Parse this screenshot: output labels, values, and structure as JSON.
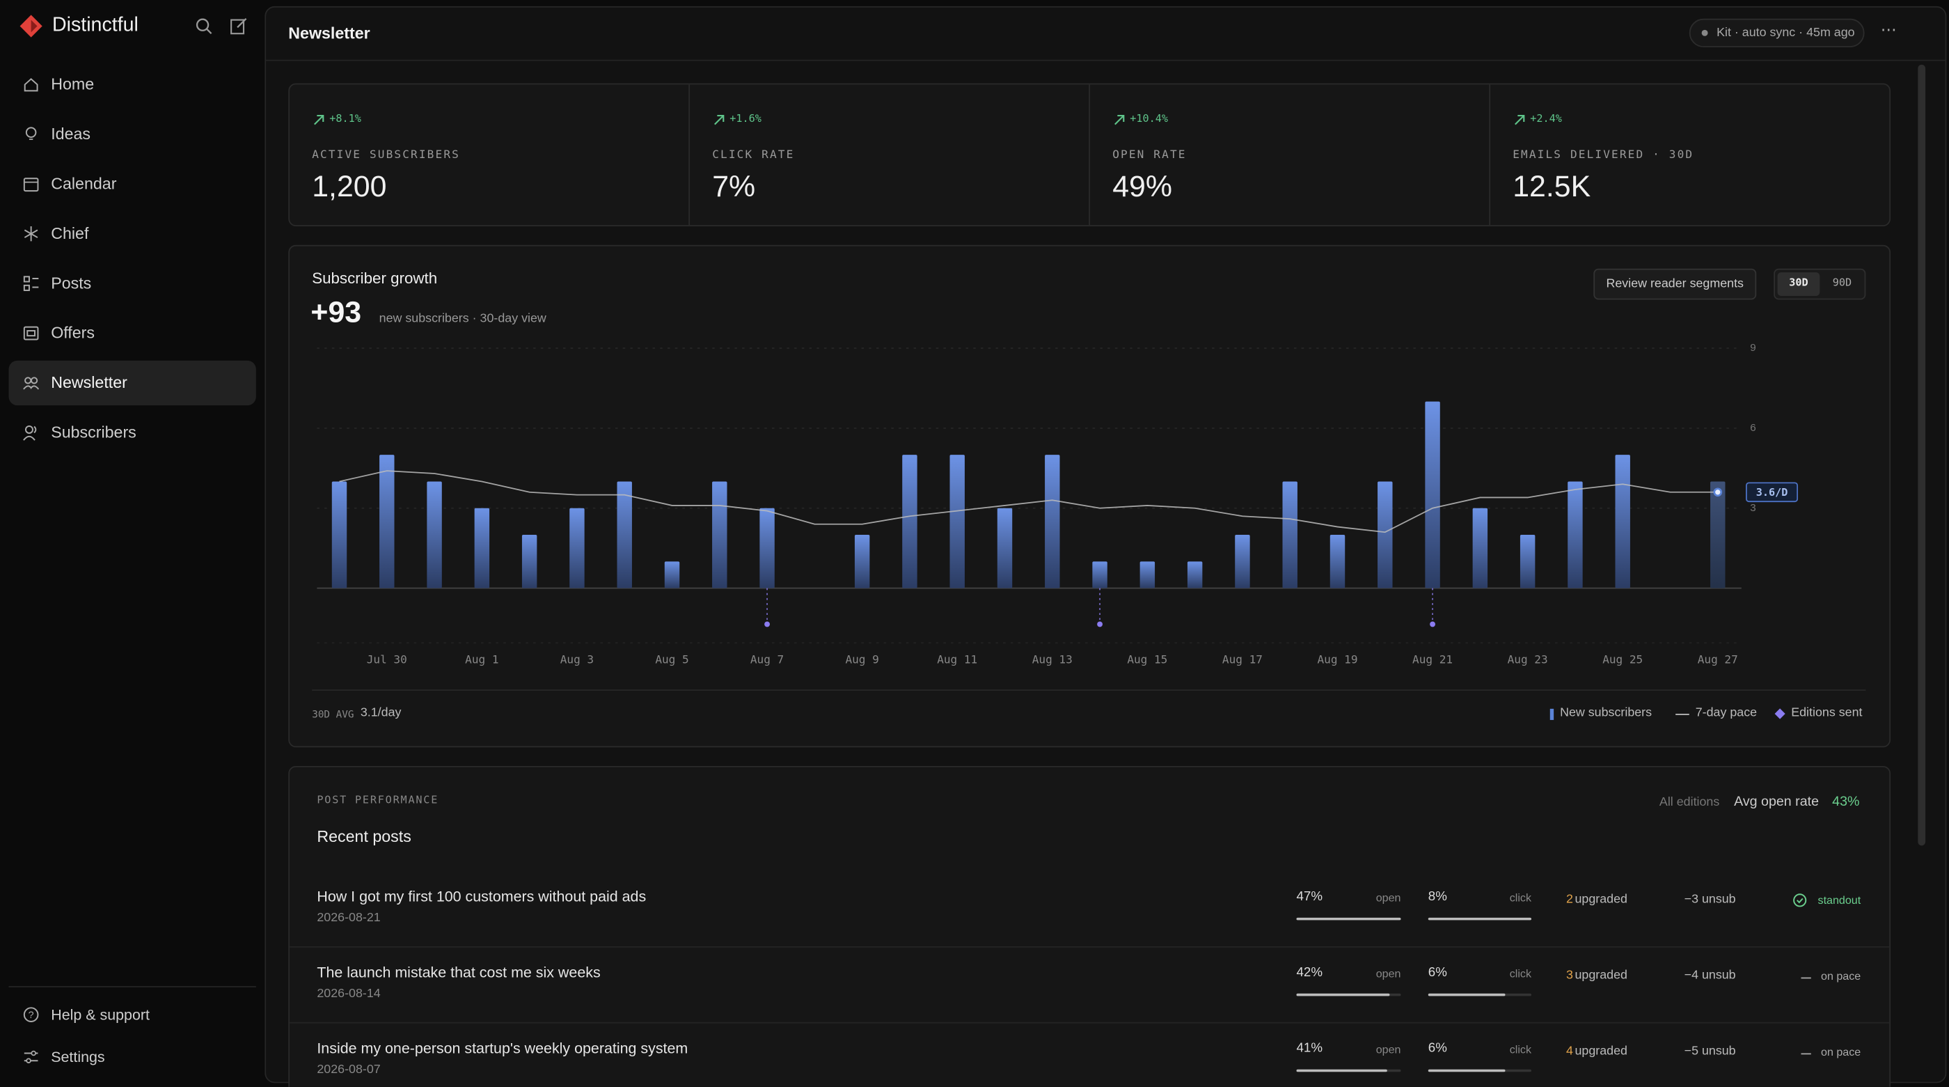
{
  "sidebar": {
    "brand": "Distinctful",
    "nav": [
      "Home",
      "Ideas",
      "Calendar",
      "Chief",
      "Posts",
      "Offers",
      "Newsletter",
      "Subscribers"
    ],
    "footer": [
      "Help & support",
      "Settings"
    ]
  },
  "header": {
    "title": "Newsletter",
    "sync": "Kit · auto sync · 45m ago"
  },
  "kpis": [
    {
      "delta": "+8.1%",
      "label": "ACTIVE SUBSCRIBERS",
      "value": "1,200"
    },
    {
      "delta": "+1.6%",
      "label": "CLICK RATE",
      "value": "7%"
    },
    {
      "delta": "+10.4%",
      "label": "OPEN RATE",
      "value": "49%"
    },
    {
      "delta": "+2.4%",
      "label": "EMAILS DELIVERED · 30D",
      "value": "12.5K"
    }
  ],
  "growth": {
    "title": "Subscriber growth",
    "total": "+93",
    "note": "new subscribers · 30-day view",
    "button": "Review reader segments",
    "ranges": [
      "30D",
      "90D"
    ],
    "avg_label": "30D AVG",
    "avg_value": "3.1/day"
  },
  "chart_data": {
    "type": "bar",
    "categories": [
      null,
      "Jul 30",
      null,
      "Aug 1",
      null,
      "Aug 3",
      null,
      "Aug 5",
      null,
      "Aug 7",
      null,
      "Aug 9",
      null,
      "Aug 11",
      null,
      "Aug 13",
      null,
      "Aug 15",
      null,
      "Aug 17",
      null,
      "Aug 19",
      null,
      "Aug 21",
      null,
      "Aug 23",
      null,
      "Aug 25",
      null,
      "Aug 27"
    ],
    "series": [
      {
        "name": "New subscribers",
        "color": "#5b84d8",
        "values": [
          4,
          5,
          4,
          3,
          2,
          3,
          4,
          1,
          4,
          3,
          0,
          2,
          5,
          5,
          3,
          5,
          1,
          1,
          1,
          2,
          4,
          2,
          4,
          7,
          3,
          2,
          4,
          5,
          0,
          4
        ]
      },
      {
        "name": "7-day pace",
        "color": "#bdbdbd",
        "values": [
          4.0,
          4.4,
          4.3,
          4.0,
          3.6,
          3.5,
          3.5,
          3.1,
          3.1,
          2.9,
          2.4,
          2.4,
          2.7,
          2.9,
          3.1,
          3.3,
          3.0,
          3.1,
          3.0,
          2.7,
          2.6,
          2.3,
          2.1,
          3.0,
          3.4,
          3.4,
          3.7,
          3.9,
          3.6,
          3.6
        ]
      },
      {
        "name": "Editions sent",
        "color": "#8b7cf0",
        "values": [
          null,
          null,
          null,
          null,
          null,
          null,
          null,
          null,
          null,
          1,
          null,
          null,
          null,
          null,
          null,
          null,
          1,
          null,
          null,
          null,
          null,
          null,
          null,
          1,
          null,
          null,
          null,
          null,
          null,
          null
        ]
      }
    ],
    "pace_label": "3.6/D",
    "ylim": [
      0,
      9
    ],
    "yticks": [
      3,
      6,
      9
    ],
    "grid": true
  },
  "posts": {
    "kicker": "POST PERFORMANCE",
    "title": "Recent posts",
    "filter": "All editions",
    "avg_label": "Avg open rate",
    "avg_value": "43%",
    "rows": [
      {
        "title": "How I got my first 100 customers without paid ads",
        "date": "2026-08-21",
        "open": 47,
        "open_label": "47%",
        "open_caption": "open",
        "click": 8,
        "click_label": "8%",
        "click_caption": "click",
        "upgraded_n": "2",
        "upgraded": "upgraded",
        "unsub": "−3 unsub",
        "status": "standout"
      },
      {
        "title": "The launch mistake that cost me six weeks",
        "date": "2026-08-14",
        "open": 42,
        "open_label": "42%",
        "open_caption": "open",
        "click": 6,
        "click_label": "6%",
        "click_caption": "click",
        "upgraded_n": "3",
        "upgraded": "upgraded",
        "unsub": "−4 unsub",
        "status": "on pace"
      },
      {
        "title": "Inside my one-person startup's weekly operating system",
        "date": "2026-08-07",
        "open": 41,
        "open_label": "41%",
        "open_caption": "open",
        "click": 6,
        "click_label": "6%",
        "click_caption": "click",
        "upgraded_n": "4",
        "upgraded": "upgraded",
        "unsub": "−5 unsub",
        "status": "on pace"
      }
    ]
  }
}
